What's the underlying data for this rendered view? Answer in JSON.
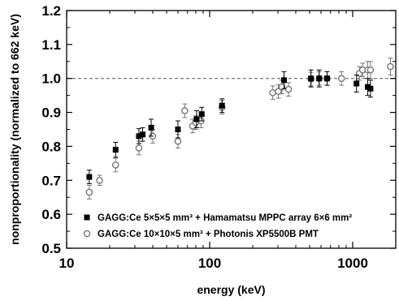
{
  "chart_data": {
    "type": "scatter",
    "title": "",
    "xlabel": "energy (keV)",
    "ylabel": "nonproportionality (normalized to 662 keV)",
    "x_scale": "log",
    "xlim": [
      10,
      2000
    ],
    "ylim": [
      0.5,
      1.2
    ],
    "x_ticks": [
      10,
      100,
      1000
    ],
    "x_tick_labels": [
      "10",
      "100",
      "1000"
    ],
    "y_ticks": [
      0.5,
      0.6,
      0.7,
      0.8,
      0.9,
      1.0,
      1.1,
      1.2
    ],
    "y_tick_labels": [
      "0.5",
      "0.6",
      "0.7",
      "0.8",
      "0.9",
      "1.0",
      "1.1",
      "1.2"
    ],
    "grid": false,
    "legend_position": "bottom-right",
    "reference_line": {
      "y": 1.0,
      "style": "dashed"
    },
    "series": [
      {
        "name": "GAGG:Ce 5×5×5 mm³ + Hamamatsu MPPC array 6×6 mm²",
        "marker": "filled-square",
        "color": "#000000",
        "points": [
          {
            "x": 14.4,
            "y": 0.71,
            "err": 0.02
          },
          {
            "x": 22,
            "y": 0.79,
            "err": 0.022
          },
          {
            "x": 32,
            "y": 0.83,
            "err": 0.022
          },
          {
            "x": 34,
            "y": 0.835,
            "err": 0.02
          },
          {
            "x": 39,
            "y": 0.855,
            "err": 0.025
          },
          {
            "x": 60,
            "y": 0.85,
            "err": 0.025
          },
          {
            "x": 81,
            "y": 0.88,
            "err": 0.025
          },
          {
            "x": 88,
            "y": 0.895,
            "err": 0.02
          },
          {
            "x": 122,
            "y": 0.92,
            "err": 0.02
          },
          {
            "x": 331,
            "y": 0.995,
            "err": 0.025
          },
          {
            "x": 511,
            "y": 1.0,
            "err": 0.025
          },
          {
            "x": 583,
            "y": 1.0,
            "err": 0.025
          },
          {
            "x": 662,
            "y": 1.0,
            "err": 0.02
          },
          {
            "x": 1063,
            "y": 0.985,
            "err": 0.025
          },
          {
            "x": 1274,
            "y": 0.975,
            "err": 0.025
          },
          {
            "x": 1332,
            "y": 0.97,
            "err": 0.025
          }
        ]
      },
      {
        "name": "GAGG:Ce 10×10×5 mm³ + Photonis XP5500B PMT",
        "marker": "open-circle",
        "color": "#777777",
        "points": [
          {
            "x": 14.4,
            "y": 0.665,
            "err": 0.02
          },
          {
            "x": 17,
            "y": 0.7,
            "err": 0.015
          },
          {
            "x": 22,
            "y": 0.745,
            "err": 0.02
          },
          {
            "x": 32,
            "y": 0.795,
            "err": 0.02
          },
          {
            "x": 40,
            "y": 0.83,
            "err": 0.02
          },
          {
            "x": 60,
            "y": 0.815,
            "err": 0.02
          },
          {
            "x": 67,
            "y": 0.905,
            "err": 0.02
          },
          {
            "x": 76,
            "y": 0.86,
            "err": 0.02
          },
          {
            "x": 80,
            "y": 0.87,
            "err": 0.02
          },
          {
            "x": 87,
            "y": 0.875,
            "err": 0.02
          },
          {
            "x": 122,
            "y": 0.915,
            "err": 0.02
          },
          {
            "x": 276,
            "y": 0.958,
            "err": 0.02
          },
          {
            "x": 302,
            "y": 0.962,
            "err": 0.02
          },
          {
            "x": 320,
            "y": 0.975,
            "err": 0.02
          },
          {
            "x": 356,
            "y": 0.968,
            "err": 0.02
          },
          {
            "x": 511,
            "y": 0.998,
            "err": 0.02
          },
          {
            "x": 583,
            "y": 1.0,
            "err": 0.02
          },
          {
            "x": 662,
            "y": 1.0,
            "err": 0.02
          },
          {
            "x": 835,
            "y": 1.0,
            "err": 0.02
          },
          {
            "x": 1115,
            "y": 1.015,
            "err": 0.02
          },
          {
            "x": 1173,
            "y": 1.025,
            "err": 0.02
          },
          {
            "x": 1274,
            "y": 1.025,
            "err": 0.025
          },
          {
            "x": 1332,
            "y": 1.025,
            "err": 0.025
          },
          {
            "x": 1836,
            "y": 1.035,
            "err": 0.025
          }
        ]
      }
    ]
  }
}
